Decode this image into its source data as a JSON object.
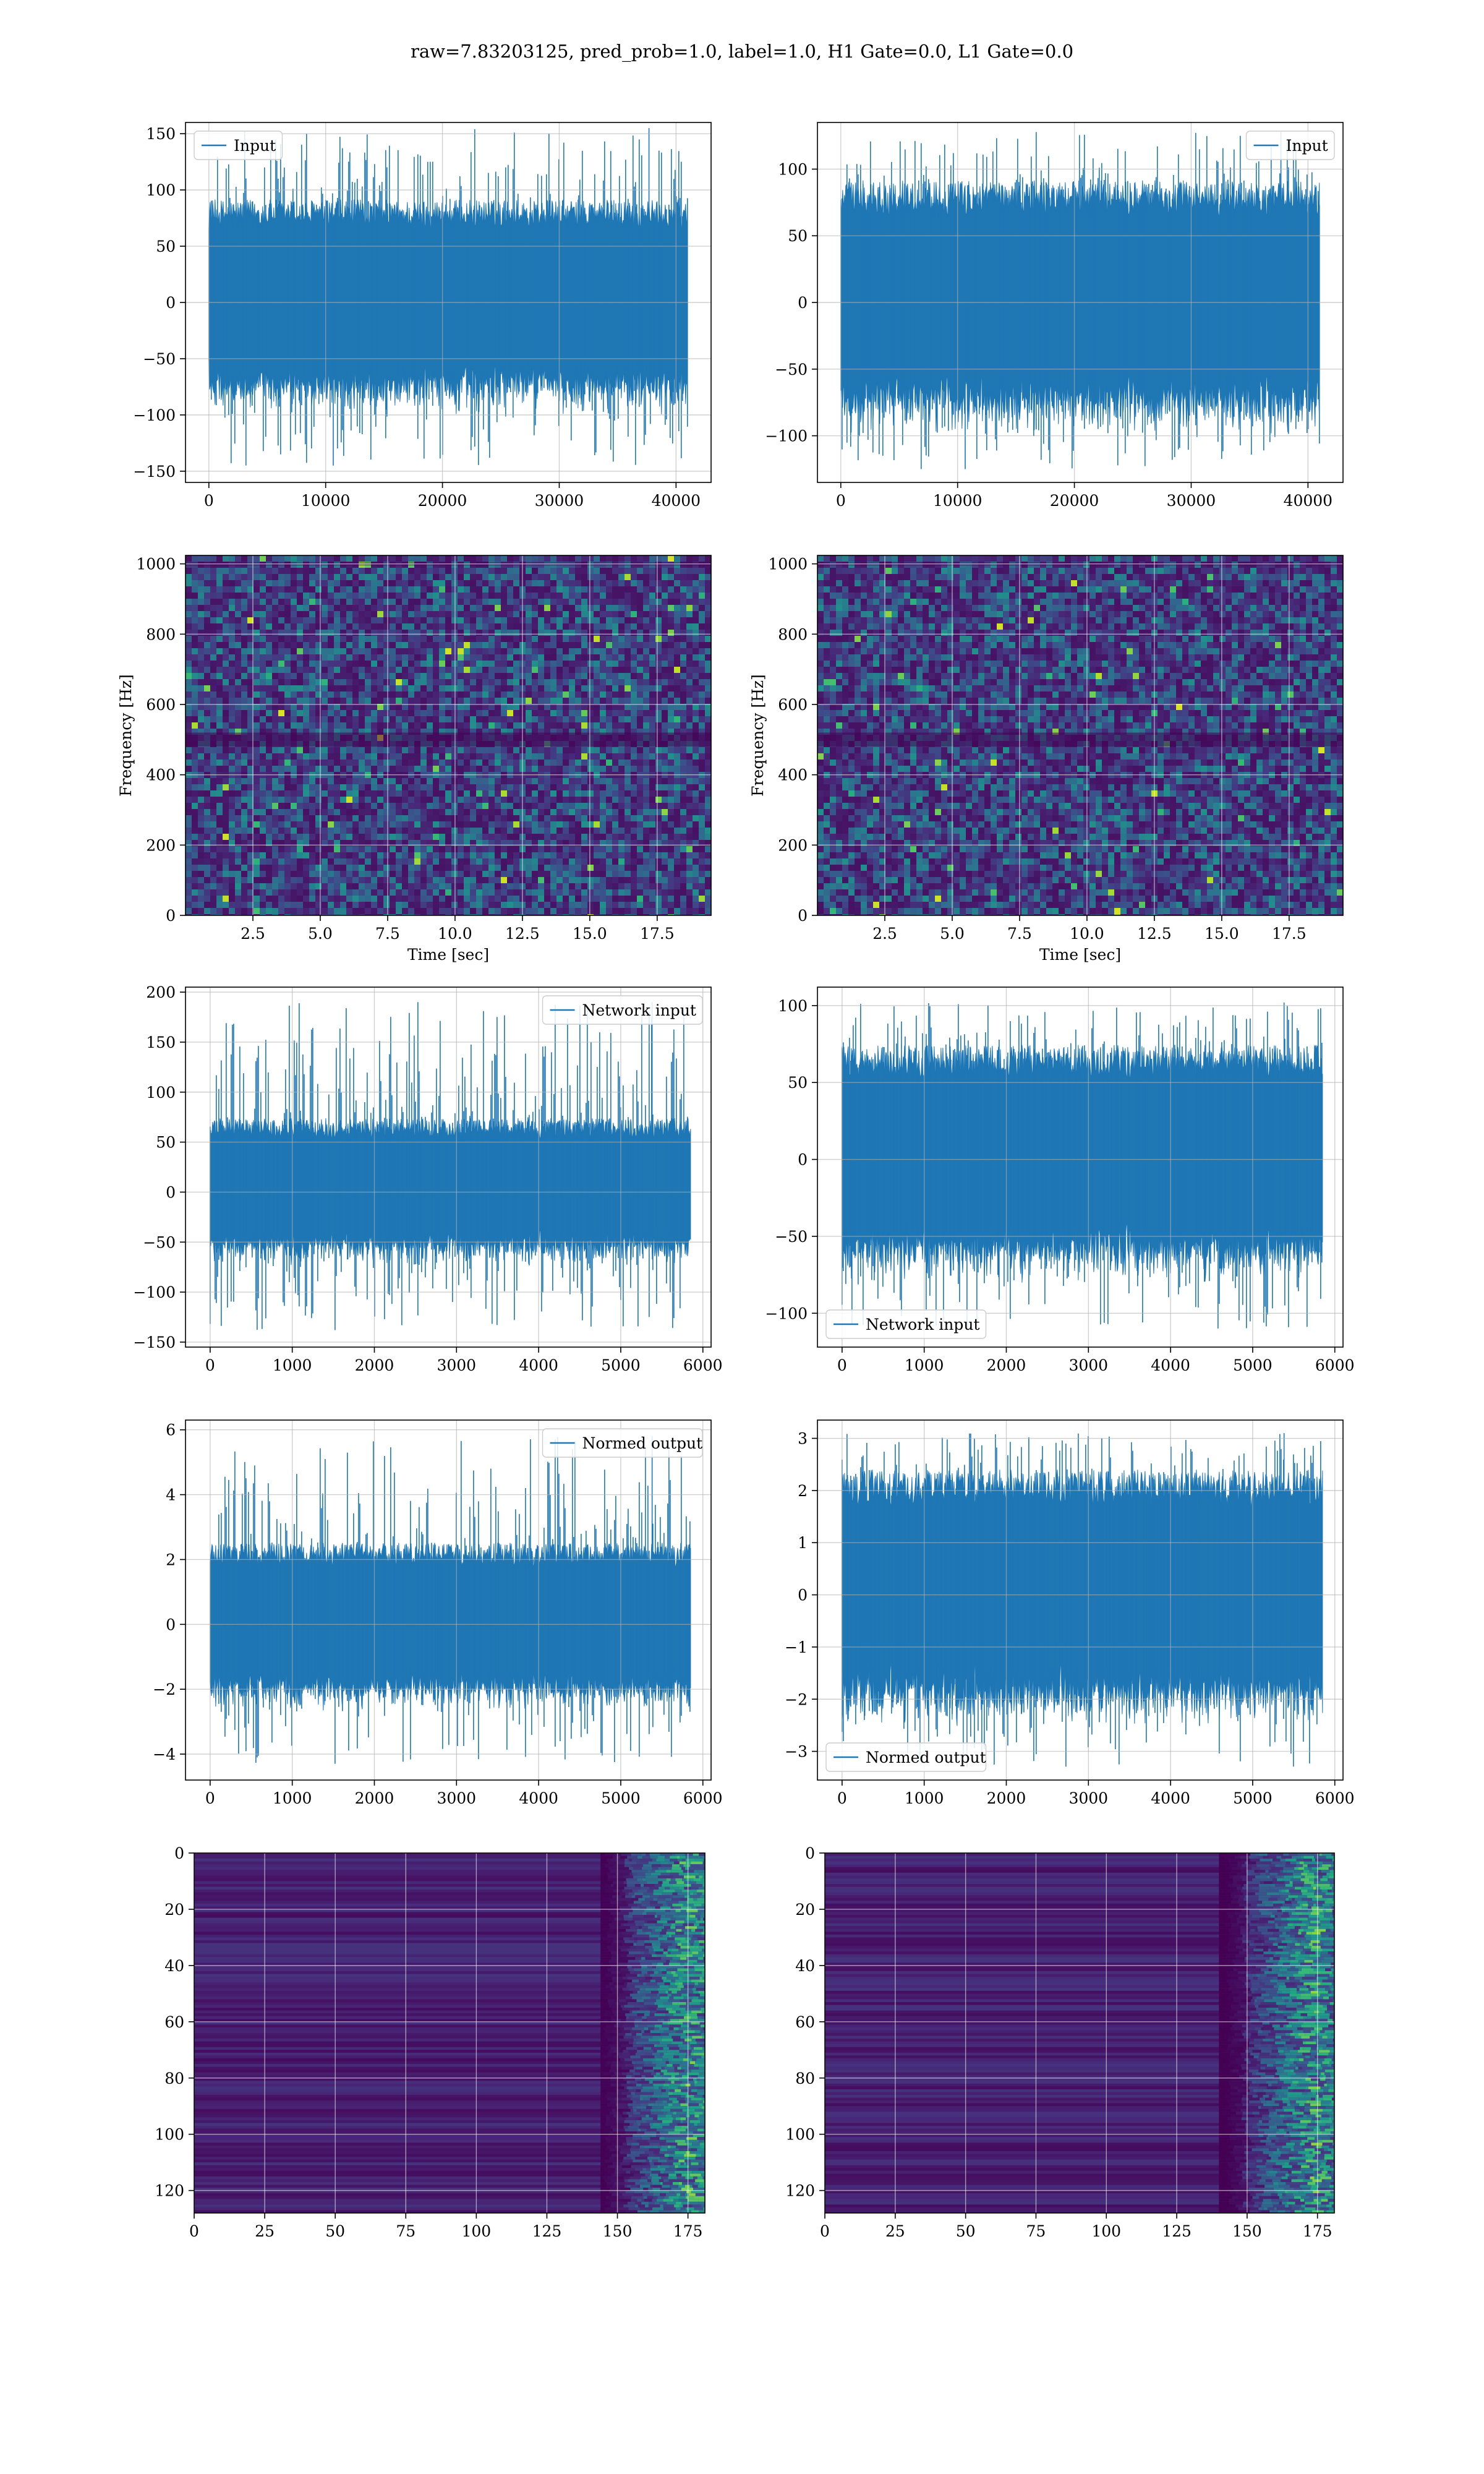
{
  "suptitle": "raw=7.83203125, pred_prob=1.0, label=1.0, H1 Gate=0.0, L1 Gate=0.0",
  "colors": {
    "line": "#1f77b4",
    "grid": "#b0b0b0",
    "viridis_dark": "#440154",
    "viridis_green": "#35b779",
    "viridis_yellow": "#fde725"
  },
  "chart_data": [
    {
      "panel": "row1-left",
      "type": "line",
      "series": [
        {
          "name": "Input",
          "x_range": [
            0,
            40960
          ],
          "y_range": [
            -145,
            155
          ],
          "bulk": [
            -75,
            80
          ]
        }
      ],
      "xlim": [
        -2000,
        43000
      ],
      "ylim": [
        -160,
        160
      ],
      "xticks": [
        0,
        10000,
        20000,
        30000,
        40000
      ],
      "yticks": [
        -150,
        -100,
        -50,
        0,
        50,
        100,
        150
      ],
      "legend": "upper left",
      "grid": true
    },
    {
      "panel": "row1-right",
      "type": "line",
      "series": [
        {
          "name": "Input",
          "x_range": [
            0,
            40960
          ],
          "y_range": [
            -125,
            128
          ],
          "bulk": [
            -75,
            80
          ]
        }
      ],
      "xlim": [
        -2000,
        43000
      ],
      "ylim": [
        -135,
        135
      ],
      "xticks": [
        0,
        10000,
        20000,
        30000,
        40000
      ],
      "yticks": [
        -100,
        -50,
        0,
        50,
        100
      ],
      "legend": "upper right",
      "grid": true
    },
    {
      "panel": "row2-left",
      "type": "heatmap",
      "colormap": "viridis",
      "xlabel": "Time [sec]",
      "ylabel": "Frequency [Hz]",
      "xlim": [
        0,
        19.5
      ],
      "ylim": [
        0,
        1024
      ],
      "xticks": [
        2.5,
        5.0,
        7.5,
        10.0,
        12.5,
        15.0,
        17.5
      ],
      "yticks": [
        0,
        200,
        400,
        600,
        800,
        1000
      ],
      "grid": true
    },
    {
      "panel": "row2-right",
      "type": "heatmap",
      "colormap": "viridis",
      "xlabel": "Time [sec]",
      "ylabel": "Frequency [Hz]",
      "xlim": [
        0,
        19.5
      ],
      "ylim": [
        0,
        1024
      ],
      "xticks": [
        2.5,
        5.0,
        7.5,
        10.0,
        12.5,
        15.0,
        17.5
      ],
      "yticks": [
        0,
        200,
        400,
        600,
        800,
        1000
      ],
      "grid": true
    },
    {
      "panel": "row3-left",
      "type": "line",
      "series": [
        {
          "name": "Network input",
          "x_range": [
            0,
            5850
          ],
          "y_range": [
            -138,
            190
          ],
          "bulk": [
            -55,
            65
          ]
        }
      ],
      "xlim": [
        -300,
        6100
      ],
      "ylim": [
        -155,
        205
      ],
      "xticks": [
        0,
        1000,
        2000,
        3000,
        4000,
        5000,
        6000
      ],
      "yticks": [
        -150,
        -100,
        -50,
        0,
        50,
        100,
        150,
        200
      ],
      "legend": "upper right",
      "grid": true
    },
    {
      "panel": "row3-right",
      "type": "line",
      "series": [
        {
          "name": "Network input",
          "x_range": [
            0,
            5850
          ],
          "y_range": [
            -110,
            102
          ],
          "bulk": [
            -60,
            65
          ]
        }
      ],
      "xlim": [
        -300,
        6100
      ],
      "ylim": [
        -122,
        112
      ],
      "xticks": [
        0,
        1000,
        2000,
        3000,
        4000,
        5000,
        6000
      ],
      "yticks": [
        -100,
        -50,
        0,
        50,
        100
      ],
      "legend": "lower left",
      "grid": true
    },
    {
      "panel": "row4-left",
      "type": "line",
      "series": [
        {
          "name": "Normed output",
          "x_range": [
            0,
            5850
          ],
          "y_range": [
            -4.3,
            5.8
          ],
          "bulk": [
            -2.0,
            2.2
          ]
        }
      ],
      "xlim": [
        -300,
        6100
      ],
      "ylim": [
        -4.8,
        6.3
      ],
      "xticks": [
        0,
        1000,
        2000,
        3000,
        4000,
        5000,
        6000
      ],
      "yticks": [
        -4,
        -2,
        0,
        2,
        4,
        6
      ],
      "legend": "upper right",
      "grid": true
    },
    {
      "panel": "row4-right",
      "type": "line",
      "series": [
        {
          "name": "Normed output",
          "x_range": [
            0,
            5850
          ],
          "y_range": [
            -3.3,
            3.1
          ],
          "bulk": [
            -1.9,
            2.1
          ]
        }
      ],
      "xlim": [
        -300,
        6100
      ],
      "ylim": [
        -3.55,
        3.35
      ],
      "xticks": [
        0,
        1000,
        2000,
        3000,
        4000,
        5000,
        6000
      ],
      "yticks": [
        -3,
        -2,
        -1,
        0,
        1,
        2,
        3
      ],
      "legend": "lower left",
      "grid": true
    },
    {
      "panel": "row5-left",
      "type": "heatmap",
      "colormap": "viridis",
      "xlim": [
        0,
        181
      ],
      "ylim": [
        128,
        0
      ],
      "xticks": [
        0,
        25,
        50,
        75,
        100,
        125,
        150,
        175
      ],
      "yticks": [
        0,
        20,
        40,
        60,
        80,
        100,
        120
      ],
      "grid": true,
      "active_columns": [
        152,
        181
      ]
    },
    {
      "panel": "row5-right",
      "type": "heatmap",
      "colormap": "viridis",
      "xlim": [
        0,
        181
      ],
      "ylim": [
        128,
        0
      ],
      "xticks": [
        0,
        25,
        50,
        75,
        100,
        125,
        150,
        175
      ],
      "yticks": [
        0,
        20,
        40,
        60,
        80,
        100,
        120
      ],
      "grid": true,
      "active_columns": [
        148,
        181
      ]
    }
  ]
}
